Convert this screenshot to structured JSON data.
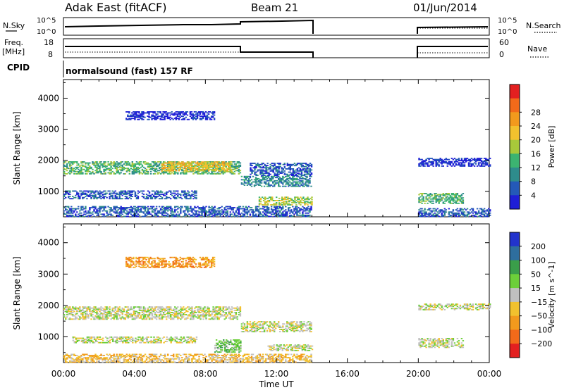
{
  "header": {
    "radar": "Adak East (fitACF)",
    "beam": "Beam 21",
    "date": "01/Jun/2014"
  },
  "panels": {
    "nsky": {
      "left_label": "N.Sky",
      "right_label": "N.Search",
      "left_ticks": [
        "10^5",
        "10^0"
      ],
      "right_ticks": [
        "10^5",
        "10^0"
      ]
    },
    "freq": {
      "left_label_1": "Freq.",
      "left_label_2": "[MHz]",
      "right_label": "Nave",
      "left_ticks": [
        "18",
        "8"
      ],
      "right_ticks": [
        "60",
        "0"
      ]
    },
    "cpid": {
      "label": "CPID",
      "mode": "normalsound (fast) 157 RF"
    }
  },
  "chart_data": [
    {
      "type": "heatmap",
      "title": "",
      "xlabel": "Time UT",
      "ylabel": "Slant Range [km]",
      "xlim": [
        "00:00",
        "24:00"
      ],
      "ylim": [
        180,
        4600
      ],
      "x_ticks": [
        "00:00",
        "04:00",
        "08:00",
        "12:00",
        "16:00",
        "20:00",
        "00:00"
      ],
      "y_ticks": [
        "1000",
        "2000",
        "3000",
        "4000"
      ],
      "colorbar": {
        "label": "Power [dB]",
        "ticks": [
          "4",
          "8",
          "12",
          "16",
          "20",
          "24",
          "28"
        ],
        "colors": [
          "#1f1fd6",
          "#2459b8",
          "#2e8c8c",
          "#3cb371",
          "#a8c83a",
          "#f2c12e",
          "#f29a1d",
          "#f26a1a",
          "#e32020"
        ]
      },
      "bands": [
        {
          "t0": 0.0,
          "t1": 10.0,
          "r0": 1550,
          "r1": 1950,
          "level": 3
        },
        {
          "t0": 5.5,
          "t1": 9.5,
          "r0": 1650,
          "r1": 1950,
          "level": 5
        },
        {
          "t0": 10.0,
          "t1": 14.0,
          "r0": 1150,
          "r1": 1500,
          "level": 2
        },
        {
          "t0": 10.5,
          "t1": 14.0,
          "r0": 1500,
          "r1": 1900,
          "level": 1
        },
        {
          "t0": 11.0,
          "t1": 14.0,
          "r0": 550,
          "r1": 800,
          "level": 4
        },
        {
          "t0": 3.5,
          "t1": 8.5,
          "r0": 3300,
          "r1": 3550,
          "level": 0
        },
        {
          "t0": 0.0,
          "t1": 7.5,
          "r0": 750,
          "r1": 1000,
          "level": 1
        },
        {
          "t0": 20.0,
          "t1": 22.5,
          "r0": 600,
          "r1": 950,
          "level": 3
        },
        {
          "t0": 20.0,
          "t1": 24.0,
          "r0": 1800,
          "r1": 2050,
          "level": 0
        },
        {
          "t0": 0.0,
          "t1": 14.0,
          "r0": 180,
          "r1": 500,
          "level": 1
        },
        {
          "t0": 20.0,
          "t1": 24.0,
          "r0": 180,
          "r1": 450,
          "level": 1
        }
      ]
    },
    {
      "type": "heatmap",
      "title": "",
      "xlabel": "Time UT",
      "ylabel": "Slant Range [km]",
      "xlim": [
        "00:00",
        "24:00"
      ],
      "ylim": [
        180,
        4600
      ],
      "x_ticks": [
        "00:00",
        "04:00",
        "08:00",
        "12:00",
        "16:00",
        "20:00",
        "00:00"
      ],
      "y_ticks": [
        "1000",
        "2000",
        "3000",
        "4000"
      ],
      "colorbar": {
        "label": "Velocity [m s^-1]",
        "ticks": [
          "200",
          "100",
          "50",
          "15",
          "−15",
          "−50",
          "−100",
          "−200"
        ],
        "colors": [
          "#2233cc",
          "#2e6e9e",
          "#3a9e4a",
          "#6ccf3a",
          "#c0c0c0",
          "#f2c12e",
          "#f29a1d",
          "#f26a1a",
          "#e32020"
        ]
      },
      "bands": [
        {
          "t0": 0.0,
          "t1": 10.0,
          "r0": 1550,
          "r1": 1950,
          "level": 4
        },
        {
          "t0": 10.0,
          "t1": 14.0,
          "r0": 1150,
          "r1": 1500,
          "level": 4
        },
        {
          "t0": 11.5,
          "t1": 14.0,
          "r0": 550,
          "r1": 750,
          "level": 4
        },
        {
          "t0": 3.5,
          "t1": 8.5,
          "r0": 3200,
          "r1": 3550,
          "level": 6
        },
        {
          "t0": 0.5,
          "t1": 7.5,
          "r0": 800,
          "r1": 1000,
          "level": 4
        },
        {
          "t0": 20.0,
          "t1": 22.5,
          "r0": 650,
          "r1": 950,
          "level": 4
        },
        {
          "t0": 20.0,
          "t1": 24.0,
          "r0": 1850,
          "r1": 2050,
          "level": 4
        },
        {
          "t0": 8.5,
          "t1": 10.0,
          "r0": 500,
          "r1": 900,
          "level": 3
        },
        {
          "t0": 0.0,
          "t1": 14.0,
          "r0": 180,
          "r1": 450,
          "level": 5
        }
      ]
    }
  ]
}
